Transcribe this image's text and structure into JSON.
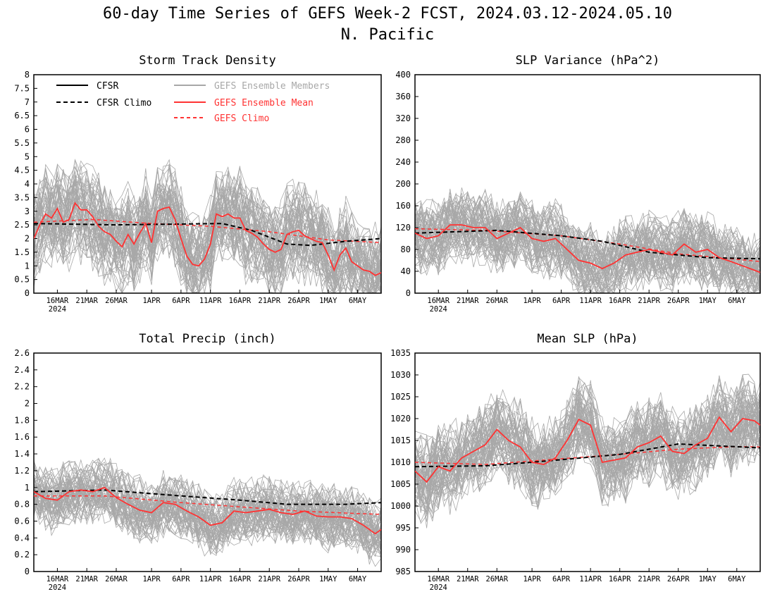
{
  "title": "60-day Time Series of GEFS Week-2 FCST, 2024.03.12-2024.05.10",
  "subtitle": "N. Pacific",
  "colors": {
    "cfsr": "#000000",
    "members": "#a8a8a8",
    "ens_mean": "#ff3333",
    "gefs_climo": "#ff3333"
  },
  "legend": {
    "cfsr": "CFSR",
    "cfsr_climo": "CFSR Climo",
    "members": "GEFS Ensemble Members",
    "ens_mean": "GEFS Ensemble Mean",
    "gefs_climo": "GEFS Climo"
  },
  "x_axis": {
    "start": "2024-03-12",
    "end": "2024-05-10",
    "tick_labels": [
      "16MAR",
      "21MAR",
      "26MAR",
      "1APR",
      "6APR",
      "11APR",
      "16APR",
      "21APR",
      "26APR",
      "1MAY",
      "6MAY"
    ],
    "tick_dates": [
      "2024-03-16",
      "2024-03-21",
      "2024-03-26",
      "2024-04-01",
      "2024-04-06",
      "2024-04-11",
      "2024-04-16",
      "2024-04-21",
      "2024-04-26",
      "2024-05-01",
      "2024-05-06"
    ],
    "year_label": "2024"
  },
  "chart_data": [
    {
      "type": "line",
      "title": "Storm Track Density",
      "ylim": [
        0,
        8
      ],
      "yticks": [
        "0",
        "0.5",
        "1",
        "1.5",
        "2",
        "2.5",
        "3",
        "3.5",
        "4",
        "4.5",
        "5",
        "5.5",
        "6",
        "6.5",
        "7",
        "7.5",
        "8"
      ],
      "ytick_values": [
        0,
        0.5,
        1,
        1.5,
        2,
        2.5,
        3,
        3.5,
        4,
        4.5,
        5,
        5.5,
        6,
        6.5,
        7,
        7.5,
        8
      ],
      "members_spread": {
        "low": 0.3,
        "high": 5.0
      },
      "series": [
        {
          "name": "CFSR Climo",
          "key": "cfsr_climo",
          "x": [
            "2024-03-12",
            "2024-03-26",
            "2024-04-13",
            "2024-04-18",
            "2024-04-24",
            "2024-04-28",
            "2024-05-04",
            "2024-05-10"
          ],
          "y": [
            2.55,
            2.5,
            2.55,
            2.3,
            1.8,
            1.75,
            1.9,
            2.0
          ]
        },
        {
          "name": "GEFS Climo",
          "key": "gefs_climo",
          "x": [
            "2024-03-12",
            "2024-03-22",
            "2024-04-01",
            "2024-04-11",
            "2024-04-21",
            "2024-05-01",
            "2024-05-10"
          ],
          "y": [
            2.6,
            2.7,
            2.55,
            2.45,
            2.25,
            1.95,
            1.85
          ]
        },
        {
          "name": "GEFS Ensemble Mean",
          "key": "ens_mean",
          "x": [
            "2024-03-12",
            "2024-03-13",
            "2024-03-14",
            "2024-03-15",
            "2024-03-16",
            "2024-03-17",
            "2024-03-18",
            "2024-03-19",
            "2024-03-20",
            "2024-03-21",
            "2024-03-22",
            "2024-03-23",
            "2024-03-24",
            "2024-03-25",
            "2024-03-26",
            "2024-03-27",
            "2024-03-28",
            "2024-03-29",
            "2024-03-30",
            "2024-03-31",
            "2024-04-01",
            "2024-04-02",
            "2024-04-03",
            "2024-04-04",
            "2024-04-05",
            "2024-04-06",
            "2024-04-07",
            "2024-04-08",
            "2024-04-09",
            "2024-04-10",
            "2024-04-11",
            "2024-04-12",
            "2024-04-13",
            "2024-04-14",
            "2024-04-15",
            "2024-04-16",
            "2024-04-17",
            "2024-04-18",
            "2024-04-19",
            "2024-04-20",
            "2024-04-21",
            "2024-04-22",
            "2024-04-23",
            "2024-04-24",
            "2024-04-25",
            "2024-04-26",
            "2024-04-27",
            "2024-04-28",
            "2024-04-29",
            "2024-04-30",
            "2024-05-01",
            "2024-05-02",
            "2024-05-03",
            "2024-05-04",
            "2024-05-05",
            "2024-05-06",
            "2024-05-07",
            "2024-05-08",
            "2024-05-09",
            "2024-05-10"
          ],
          "y": [
            2.0,
            2.5,
            2.9,
            2.75,
            3.1,
            2.6,
            2.7,
            3.3,
            3.05,
            3.05,
            2.8,
            2.45,
            2.25,
            2.15,
            1.9,
            1.7,
            2.15,
            1.8,
            2.2,
            2.55,
            1.85,
            3.0,
            3.1,
            3.15,
            2.7,
            2.0,
            1.35,
            1.05,
            1.0,
            1.25,
            1.8,
            2.9,
            2.8,
            2.9,
            2.75,
            2.75,
            2.3,
            2.2,
            2.05,
            1.8,
            1.6,
            1.5,
            1.6,
            2.15,
            2.25,
            2.3,
            2.1,
            2.0,
            1.9,
            1.85,
            1.4,
            0.85,
            1.4,
            1.65,
            1.15,
            1.0,
            0.85,
            0.8,
            0.65,
            0.75
          ]
        }
      ]
    },
    {
      "type": "line",
      "title": "SLP Variance (hPa^2)",
      "ylim": [
        0,
        400
      ],
      "yticks": [
        "0",
        "40",
        "80",
        "120",
        "160",
        "200",
        "240",
        "280",
        "320",
        "360",
        "400"
      ],
      "ytick_values": [
        0,
        40,
        80,
        120,
        160,
        200,
        240,
        280,
        320,
        360,
        400
      ],
      "members_spread": {
        "low": 25,
        "high": 200
      },
      "series": [
        {
          "name": "CFSR Climo",
          "key": "cfsr_climo",
          "x": [
            "2024-03-12",
            "2024-03-26",
            "2024-04-06",
            "2024-04-13",
            "2024-04-21",
            "2024-05-01",
            "2024-05-10"
          ],
          "y": [
            110,
            115,
            105,
            95,
            75,
            65,
            63
          ]
        },
        {
          "name": "GEFS Climo",
          "key": "gefs_climo",
          "x": [
            "2024-03-12",
            "2024-03-24",
            "2024-04-06",
            "2024-04-16",
            "2024-04-26",
            "2024-05-06",
            "2024-05-10"
          ],
          "y": [
            118,
            115,
            105,
            90,
            72,
            62,
            58
          ]
        },
        {
          "name": "GEFS Ensemble Mean",
          "key": "ens_mean",
          "x": [
            "2024-03-12",
            "2024-03-14",
            "2024-03-16",
            "2024-03-18",
            "2024-03-20",
            "2024-03-22",
            "2024-03-24",
            "2024-03-26",
            "2024-03-28",
            "2024-03-30",
            "2024-04-01",
            "2024-04-03",
            "2024-04-05",
            "2024-04-07",
            "2024-04-09",
            "2024-04-11",
            "2024-04-13",
            "2024-04-15",
            "2024-04-17",
            "2024-04-19",
            "2024-04-21",
            "2024-04-23",
            "2024-04-25",
            "2024-04-27",
            "2024-04-29",
            "2024-05-01",
            "2024-05-03",
            "2024-05-05",
            "2024-05-07",
            "2024-05-09",
            "2024-05-10"
          ],
          "y": [
            110,
            100,
            105,
            125,
            125,
            120,
            120,
            100,
            110,
            120,
            100,
            95,
            100,
            80,
            60,
            55,
            45,
            55,
            70,
            75,
            80,
            75,
            70,
            90,
            75,
            80,
            65,
            58,
            50,
            42,
            38
          ]
        }
      ]
    },
    {
      "type": "line",
      "title": "Total Precip (inch)",
      "ylim": [
        0,
        2.6
      ],
      "yticks": [
        "0",
        "0.2",
        "0.4",
        "0.6",
        "0.8",
        "1",
        "1.2",
        "1.4",
        "1.6",
        "1.8",
        "2",
        "2.2",
        "2.4",
        "2.6"
      ],
      "ytick_values": [
        0,
        0.2,
        0.4,
        0.6,
        0.8,
        1,
        1.2,
        1.4,
        1.6,
        1.8,
        2,
        2.2,
        2.4,
        2.6
      ],
      "members_spread": {
        "low": 0.3,
        "high": 1.3
      },
      "series": [
        {
          "name": "CFSR Climo",
          "key": "cfsr_climo",
          "x": [
            "2024-03-12",
            "2024-03-24",
            "2024-04-06",
            "2024-04-16",
            "2024-04-24",
            "2024-05-04",
            "2024-05-10"
          ],
          "y": [
            0.95,
            0.97,
            0.9,
            0.85,
            0.8,
            0.8,
            0.82
          ]
        },
        {
          "name": "GEFS Climo",
          "key": "gefs_climo",
          "x": [
            "2024-03-12",
            "2024-03-24",
            "2024-04-06",
            "2024-04-16",
            "2024-04-26",
            "2024-05-06",
            "2024-05-10"
          ],
          "y": [
            0.9,
            0.9,
            0.82,
            0.77,
            0.72,
            0.69,
            0.68
          ]
        },
        {
          "name": "GEFS Ensemble Mean",
          "key": "ens_mean",
          "x": [
            "2024-03-12",
            "2024-03-14",
            "2024-03-16",
            "2024-03-18",
            "2024-03-20",
            "2024-03-22",
            "2024-03-24",
            "2024-03-26",
            "2024-03-28",
            "2024-03-30",
            "2024-04-01",
            "2024-04-03",
            "2024-04-05",
            "2024-04-07",
            "2024-04-09",
            "2024-04-11",
            "2024-04-13",
            "2024-04-15",
            "2024-04-17",
            "2024-04-19",
            "2024-04-21",
            "2024-04-23",
            "2024-04-25",
            "2024-04-27",
            "2024-04-29",
            "2024-05-01",
            "2024-05-03",
            "2024-05-05",
            "2024-05-07",
            "2024-05-09",
            "2024-05-10"
          ],
          "y": [
            0.95,
            0.87,
            0.85,
            0.95,
            0.97,
            0.95,
            1.0,
            0.88,
            0.8,
            0.73,
            0.7,
            0.82,
            0.8,
            0.72,
            0.65,
            0.55,
            0.58,
            0.72,
            0.7,
            0.72,
            0.74,
            0.7,
            0.68,
            0.72,
            0.66,
            0.65,
            0.65,
            0.63,
            0.55,
            0.45,
            0.5
          ]
        }
      ]
    },
    {
      "type": "line",
      "title": "Mean SLP (hPa)",
      "ylim": [
        985,
        1035
      ],
      "yticks": [
        "985",
        "990",
        "995",
        "1000",
        "1005",
        "1010",
        "1015",
        "1020",
        "1025",
        "1030",
        "1035"
      ],
      "ytick_values": [
        985,
        990,
        995,
        1000,
        1005,
        1010,
        1015,
        1020,
        1025,
        1030,
        1035
      ],
      "members_spread": {
        "low": 999,
        "high": 1025
      },
      "series": [
        {
          "name": "CFSR Climo",
          "key": "cfsr_climo",
          "x": [
            "2024-03-12",
            "2024-03-24",
            "2024-04-01",
            "2024-04-11",
            "2024-04-16",
            "2024-04-26",
            "2024-05-10"
          ],
          "y": [
            1009,
            1009.2,
            1010,
            1011.2,
            1011.8,
            1014.2,
            1013.3
          ]
        },
        {
          "name": "GEFS Climo",
          "key": "gefs_climo",
          "x": [
            "2024-03-12",
            "2024-03-24",
            "2024-04-06",
            "2024-04-16",
            "2024-04-26",
            "2024-05-06",
            "2024-05-10"
          ],
          "y": [
            1010,
            1009.5,
            1010.8,
            1011.8,
            1013,
            1013.6,
            1013.5
          ]
        },
        {
          "name": "GEFS Ensemble Mean",
          "key": "ens_mean",
          "x": [
            "2024-03-12",
            "2024-03-14",
            "2024-03-16",
            "2024-03-18",
            "2024-03-20",
            "2024-03-22",
            "2024-03-24",
            "2024-03-26",
            "2024-03-28",
            "2024-03-30",
            "2024-04-01",
            "2024-04-03",
            "2024-04-05",
            "2024-04-07",
            "2024-04-09",
            "2024-04-11",
            "2024-04-13",
            "2024-04-15",
            "2024-04-17",
            "2024-04-19",
            "2024-04-21",
            "2024-04-23",
            "2024-04-25",
            "2024-04-27",
            "2024-04-29",
            "2024-05-01",
            "2024-05-03",
            "2024-05-05",
            "2024-05-07",
            "2024-05-09",
            "2024-05-10"
          ],
          "y": [
            1008,
            1005.5,
            1009,
            1008,
            1011,
            1012.5,
            1014,
            1017.5,
            1015,
            1013.5,
            1010,
            1009.5,
            1011,
            1015,
            1019.8,
            1018.5,
            1010,
            1010.5,
            1011,
            1013.5,
            1014.5,
            1016,
            1012.5,
            1012,
            1014,
            1015.5,
            1020.3,
            1017,
            1020,
            1019.5,
            1018.5
          ]
        }
      ]
    }
  ]
}
